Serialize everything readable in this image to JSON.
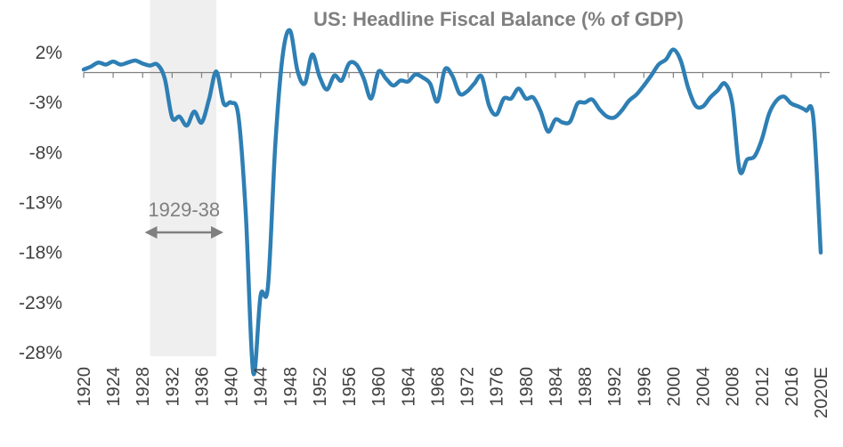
{
  "chart_data": {
    "type": "line",
    "title": "US: Headline Fiscal Balance (% of GDP)",
    "xlabel": "",
    "ylabel": "",
    "ylim": [
      -28,
      3
    ],
    "y_ticks": [
      2,
      -3,
      -8,
      -13,
      -18,
      -23,
      -28
    ],
    "y_tick_labels": [
      "2%",
      "-3%",
      "-8%",
      "-13%",
      "-18%",
      "-23%",
      "-28%"
    ],
    "x_range": [
      1920,
      2020
    ],
    "x_ticks": [
      1920,
      1924,
      1928,
      1932,
      1936,
      1940,
      1944,
      1948,
      1952,
      1956,
      1960,
      1964,
      1968,
      1972,
      1976,
      1980,
      1984,
      1988,
      1992,
      1996,
      2000,
      2004,
      2008,
      2012,
      2016,
      2020
    ],
    "x_tick_labels": [
      "1920",
      "1924",
      "1928",
      "1932",
      "1936",
      "1940",
      "1944",
      "1948",
      "1952",
      "1956",
      "1960",
      "1964",
      "1968",
      "1972",
      "1976",
      "1980",
      "1984",
      "1988",
      "1992",
      "1996",
      "2000",
      "2004",
      "2008",
      "2012",
      "2016",
      "2020E"
    ],
    "shaded_region": {
      "x_start": 1929,
      "x_end": 1938,
      "color": "#efefef"
    },
    "annotation": {
      "text": "1929-38",
      "x_start": 1929,
      "x_end": 1938
    },
    "zero_line": true,
    "colors": {
      "line": "#2e7fb4",
      "axis": "#7f7f7f",
      "arrow": "#808080"
    },
    "series": [
      {
        "name": "US Headline Fiscal Balance",
        "x": [
          1920,
          1921,
          1922,
          1923,
          1924,
          1925,
          1926,
          1927,
          1928,
          1929,
          1930,
          1931,
          1932,
          1933,
          1934,
          1935,
          1936,
          1937,
          1938,
          1939,
          1940,
          1941,
          1942,
          1943,
          1944,
          1945,
          1946,
          1947,
          1948,
          1949,
          1950,
          1951,
          1952,
          1953,
          1954,
          1955,
          1956,
          1957,
          1958,
          1959,
          1960,
          1961,
          1962,
          1963,
          1964,
          1965,
          1966,
          1967,
          1968,
          1969,
          1970,
          1971,
          1972,
          1973,
          1974,
          1975,
          1976,
          1977,
          1978,
          1979,
          1980,
          1981,
          1982,
          1983,
          1984,
          1985,
          1986,
          1987,
          1988,
          1989,
          1990,
          1991,
          1992,
          1993,
          1994,
          1995,
          1996,
          1997,
          1998,
          1999,
          2000,
          2001,
          2002,
          2003,
          2004,
          2005,
          2006,
          2007,
          2008,
          2009,
          2010,
          2011,
          2012,
          2013,
          2014,
          2015,
          2016,
          2017,
          2018,
          2019,
          2020
        ],
        "values": [
          0.3,
          0.6,
          1.0,
          0.8,
          1.1,
          0.8,
          1.0,
          1.2,
          0.9,
          0.7,
          0.8,
          -0.6,
          -4.5,
          -4.4,
          -5.3,
          -3.9,
          -5.0,
          -2.7,
          0.1,
          -3.1,
          -3.0,
          -4.4,
          -14.2,
          -30.0,
          -22.3,
          -21.4,
          -7.2,
          1.7,
          4.2,
          0.2,
          -1.1,
          1.8,
          -0.4,
          -1.7,
          -0.3,
          -0.8,
          0.9,
          0.8,
          -0.6,
          -2.6,
          0.1,
          -0.6,
          -1.3,
          -0.8,
          -0.9,
          -0.2,
          -0.5,
          -1.1,
          -2.9,
          0.3,
          -0.3,
          -2.1,
          -1.9,
          -1.1,
          -0.4,
          -3.3,
          -4.2,
          -2.6,
          -2.6,
          -1.6,
          -2.6,
          -2.5,
          -3.9,
          -5.9,
          -4.7,
          -5.0,
          -4.9,
          -3.1,
          -3.0,
          -2.7,
          -3.7,
          -4.4,
          -4.5,
          -3.8,
          -2.8,
          -2.2,
          -1.3,
          -0.3,
          0.8,
          1.3,
          2.3,
          1.2,
          -1.5,
          -3.3,
          -3.4,
          -2.5,
          -1.8,
          -1.1,
          -3.1,
          -9.8,
          -8.7,
          -8.4,
          -6.7,
          -4.1,
          -2.8,
          -2.4,
          -3.1,
          -3.4,
          -3.8,
          -4.6,
          -18.0
        ]
      }
    ]
  }
}
